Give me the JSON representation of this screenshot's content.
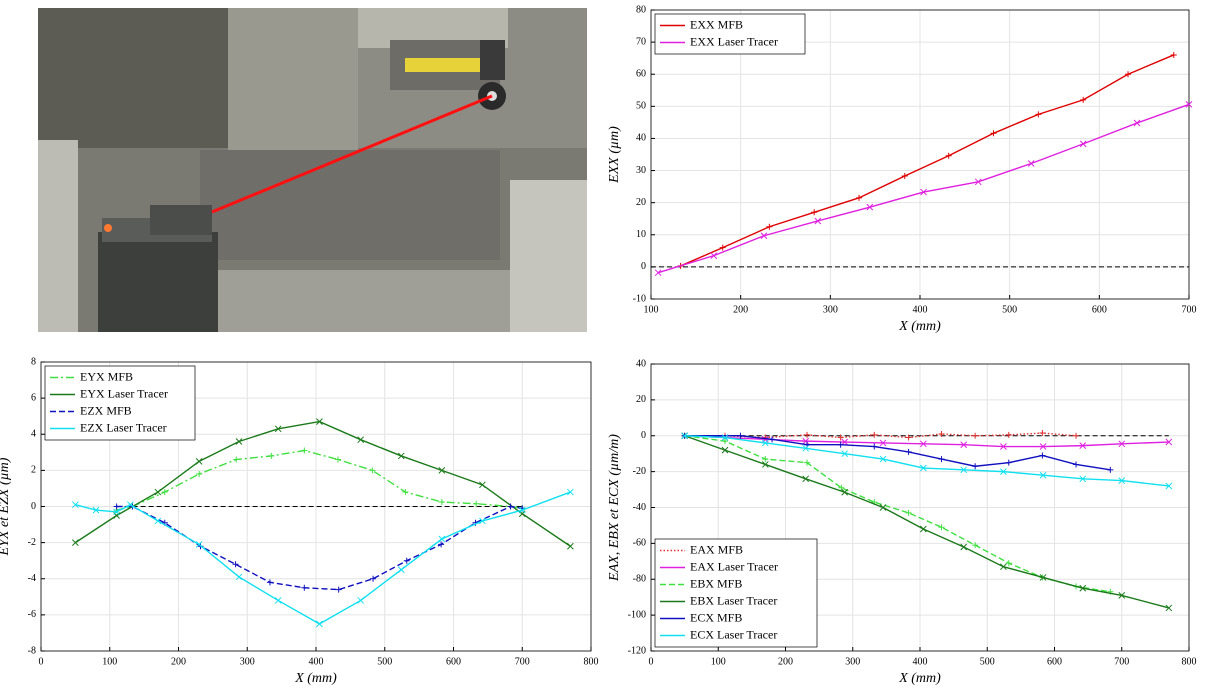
{
  "chart_data": [
    {
      "type": "line",
      "xlabel": "X (mm)",
      "ylabel": "EXX (µm)",
      "xlim": [
        100,
        700
      ],
      "xticks": [
        100,
        200,
        300,
        400,
        500,
        600,
        700
      ],
      "ylim": [
        -10,
        80
      ],
      "yticks": [
        -10,
        0,
        10,
        20,
        30,
        40,
        50,
        60,
        70,
        80
      ],
      "legend": "upper left",
      "zero_line": true,
      "series": [
        {
          "name": "EXX MFB",
          "color": "#e00000",
          "style": "solid",
          "marker": "+",
          "x": [
            133,
            180,
            232,
            282,
            332,
            383,
            432,
            482,
            532,
            582,
            632,
            683
          ],
          "values": [
            0.3,
            6,
            12.5,
            17,
            21.5,
            28.3,
            34.6,
            41.6,
            47.5,
            52,
            60,
            66
          ]
        },
        {
          "name": "EXX Laser Tracer",
          "color": "#e020e0",
          "style": "solid",
          "marker": "x",
          "x": [
            108,
            170,
            226,
            286,
            344,
            404,
            465,
            524,
            582,
            642,
            700
          ],
          "values": [
            -1.8,
            3.5,
            9.7,
            14.3,
            18.6,
            23.3,
            26.5,
            32.2,
            38.3,
            44.8,
            50.6
          ]
        }
      ]
    },
    {
      "type": "line",
      "xlabel": "X (mm)",
      "ylabel": "EYX et EZX (µm)",
      "xlim": [
        0,
        800
      ],
      "xticks": [
        0,
        100,
        200,
        300,
        400,
        500,
        600,
        700,
        800
      ],
      "ylim": [
        -8,
        8
      ],
      "yticks": [
        -8,
        -6,
        -4,
        -2,
        0,
        2,
        4,
        6,
        8
      ],
      "legend": "upper left",
      "zero_line": true,
      "series": [
        {
          "name": "EYX MFB",
          "color": "#40e040",
          "style": "dashdot",
          "marker": "+",
          "x": [
            110,
            133,
            180,
            230,
            284,
            335,
            383,
            432,
            482,
            530,
            583,
            633,
            683,
            700
          ],
          "values": [
            -0.2,
            0,
            0.8,
            1.8,
            2.6,
            2.8,
            3.1,
            2.6,
            2.0,
            0.8,
            0.25,
            0.15,
            0,
            -0.1
          ]
        },
        {
          "name": "EYX Laser Tracer",
          "color": "#1a7a1a",
          "style": "solid",
          "marker": "x",
          "x": [
            50,
            110,
            170,
            230,
            288,
            345,
            405,
            465,
            524,
            583,
            642,
            700,
            770
          ],
          "values": [
            -2,
            -0.5,
            0.8,
            2.5,
            3.6,
            4.3,
            4.7,
            3.7,
            2.8,
            2.0,
            1.2,
            -0.4,
            -2.2
          ]
        },
        {
          "name": "EZX MFB",
          "color": "#1010c0",
          "style": "dashed",
          "marker": "+",
          "x": [
            110,
            133,
            180,
            232,
            283,
            333,
            383,
            433,
            483,
            532,
            582,
            632,
            683,
            700
          ],
          "values": [
            0,
            0,
            -0.9,
            -2.2,
            -3.2,
            -4.2,
            -4.5,
            -4.6,
            -4,
            -3,
            -2.1,
            -0.9,
            0,
            -0.1
          ]
        },
        {
          "name": "EZX Laser Tracer",
          "color": "#10e0f0",
          "style": "solid",
          "marker": "x",
          "x": [
            50,
            80,
            110,
            130,
            170,
            230,
            288,
            345,
            405,
            465,
            524,
            583,
            642,
            700,
            770
          ],
          "values": [
            0.1,
            -0.2,
            -0.3,
            0.1,
            -0.8,
            -2.1,
            -3.9,
            -5.2,
            -6.5,
            -5.2,
            -3.5,
            -1.8,
            -0.8,
            -0.2,
            0.8
          ]
        }
      ]
    },
    {
      "type": "line",
      "xlabel": "X (mm)",
      "ylabel": "EAX, EBX et ECX (µm/m)",
      "xlim": [
        0,
        800
      ],
      "xticks": [
        0,
        100,
        200,
        300,
        400,
        500,
        600,
        700,
        800
      ],
      "ylim": [
        -120,
        40
      ],
      "yticks": [
        -120,
        -100,
        -80,
        -60,
        -40,
        -20,
        0,
        20,
        40
      ],
      "legend": "lower left",
      "zero_line": true,
      "series": [
        {
          "name": "EAX MFB",
          "color": "#e03030",
          "style": "dotted",
          "marker": "+",
          "x": [
            50,
            110,
            170,
            232,
            282,
            332,
            383,
            432,
            482,
            532,
            582,
            632
          ],
          "values": [
            0,
            0,
            -1,
            0.5,
            -1,
            0.5,
            -1,
            1,
            0,
            0.5,
            1.5,
            0
          ]
        },
        {
          "name": "EAX Laser Tracer",
          "color": "#e020e0",
          "style": "solid",
          "marker": "x",
          "x": [
            50,
            110,
            170,
            230,
            288,
            345,
            405,
            465,
            524,
            583,
            642,
            700,
            770
          ],
          "values": [
            0,
            -1,
            -2,
            -3,
            -3.5,
            -4,
            -4.5,
            -5,
            -6,
            -6,
            -5.5,
            -4.5,
            -3.5
          ]
        },
        {
          "name": "EBX MFB",
          "color": "#40e040",
          "style": "dashed",
          "marker": "+",
          "x": [
            50,
            110,
            170,
            232,
            283,
            332,
            383,
            432,
            482,
            532,
            582,
            632,
            683
          ],
          "values": [
            0,
            -3,
            -13,
            -15,
            -29,
            -37,
            -43,
            -51,
            -61,
            -71,
            -79,
            -84,
            -87
          ]
        },
        {
          "name": "EBX Laser Tracer",
          "color": "#1a7a1a",
          "style": "solid",
          "marker": "x",
          "x": [
            50,
            110,
            170,
            230,
            288,
            345,
            405,
            465,
            524,
            583,
            642,
            700,
            770
          ],
          "values": [
            0,
            -8,
            -16,
            -24,
            -31.5,
            -40,
            -52,
            -62,
            -73,
            -79,
            -85,
            -89,
            -96
          ]
        },
        {
          "name": "ECX MFB",
          "color": "#1010c0",
          "style": "solid",
          "marker": "+",
          "x": [
            50,
            133,
            180,
            232,
            282,
            332,
            383,
            432,
            482,
            532,
            582,
            632,
            683
          ],
          "values": [
            0,
            0,
            -2,
            -5,
            -5,
            -6,
            -9,
            -13,
            -17,
            -15,
            -11,
            -16,
            -19
          ]
        },
        {
          "name": "ECX Laser Tracer",
          "color": "#10e0f0",
          "style": "solid",
          "marker": "x",
          "x": [
            50,
            110,
            170,
            230,
            288,
            345,
            405,
            465,
            524,
            583,
            642,
            700,
            770
          ],
          "values": [
            0,
            -1,
            -4,
            -7,
            -10,
            -13,
            -18,
            -19,
            -20,
            -22,
            -24,
            -25,
            -28
          ]
        }
      ]
    }
  ]
}
